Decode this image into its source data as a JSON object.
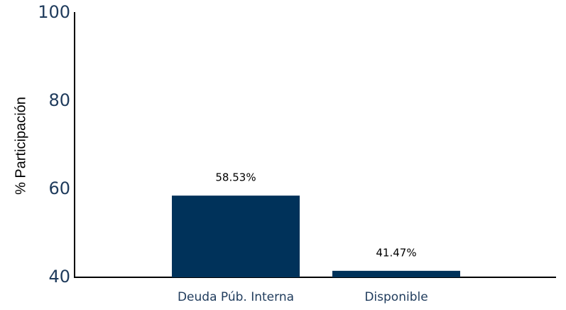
{
  "chart_data": {
    "type": "bar",
    "ylabel": "% Participación",
    "categories": [
      "Deuda Púb. Interna",
      "Disponible"
    ],
    "values": [
      58.53,
      41.47
    ],
    "value_labels": [
      "58.53%",
      "41.47%"
    ],
    "color": "#00325a",
    "ylim": [
      40,
      100
    ],
    "yticks": [
      40,
      60,
      80,
      100
    ],
    "grid": false
  }
}
